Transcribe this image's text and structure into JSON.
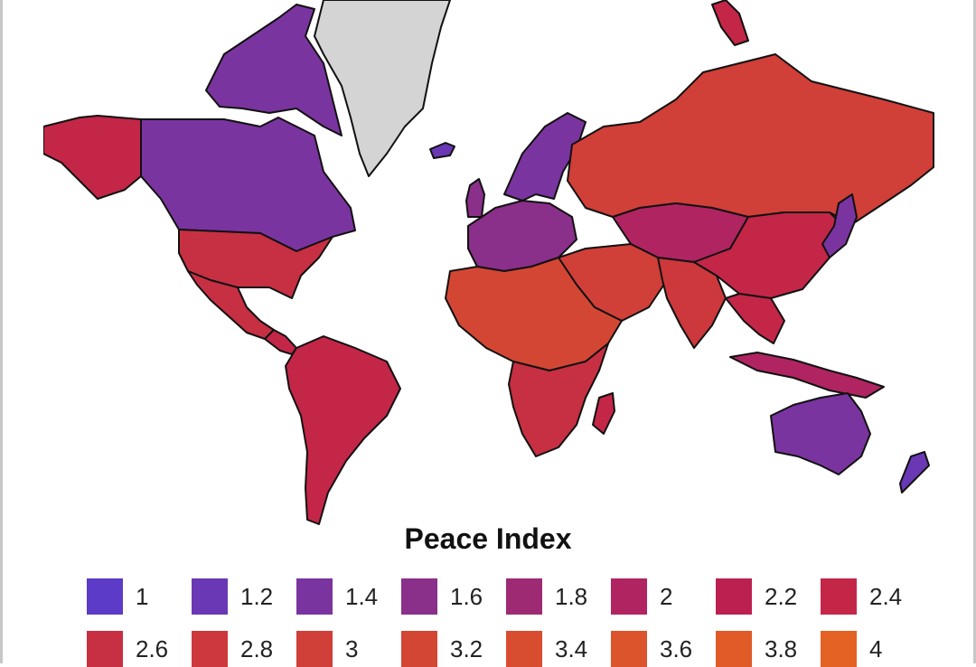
{
  "legend": {
    "title": "Peace Index",
    "items": [
      {
        "label": "1",
        "color": "#5c3bc8"
      },
      {
        "label": "1.2",
        "color": "#6a38b4"
      },
      {
        "label": "1.4",
        "color": "#7a349f"
      },
      {
        "label": "1.6",
        "color": "#8a2f8a"
      },
      {
        "label": "1.8",
        "color": "#9e2a74"
      },
      {
        "label": "2",
        "color": "#b02461"
      },
      {
        "label": "2.2",
        "color": "#bc2050"
      },
      {
        "label": "2.4",
        "color": "#c42648"
      },
      {
        "label": "2.6",
        "color": "#c72f42"
      },
      {
        "label": "2.8",
        "color": "#cc383c"
      },
      {
        "label": "3",
        "color": "#d03f38"
      },
      {
        "label": "3.2",
        "color": "#d44634"
      },
      {
        "label": "3.4",
        "color": "#d84d30"
      },
      {
        "label": "3.6",
        "color": "#dc542c"
      },
      {
        "label": "3.8",
        "color": "#e05b28"
      },
      {
        "label": "4",
        "color": "#e46224"
      }
    ]
  },
  "map": {
    "no_data_color": "#d4d4d4",
    "regions": [
      {
        "name": "alaska",
        "color": "#c42648"
      },
      {
        "name": "canada",
        "color": "#7a349f"
      },
      {
        "name": "canada-arctic",
        "color": "#7a349f"
      },
      {
        "name": "greenland",
        "color": "#d4d4d4"
      },
      {
        "name": "iceland",
        "color": "#6a38b4"
      },
      {
        "name": "usa",
        "color": "#c72f42"
      },
      {
        "name": "mexico",
        "color": "#c72f42"
      },
      {
        "name": "central-america",
        "color": "#c42648"
      },
      {
        "name": "south-america",
        "color": "#c42648"
      },
      {
        "name": "europe-west",
        "color": "#8a2f8a"
      },
      {
        "name": "scandinavia",
        "color": "#7a349f"
      },
      {
        "name": "russia",
        "color": "#d03f38"
      },
      {
        "name": "central-asia",
        "color": "#b02461"
      },
      {
        "name": "middle-east",
        "color": "#d03f38"
      },
      {
        "name": "india",
        "color": "#cc383c"
      },
      {
        "name": "china",
        "color": "#c42648"
      },
      {
        "name": "japan",
        "color": "#7a349f"
      },
      {
        "name": "se-asia",
        "color": "#c42648"
      },
      {
        "name": "africa-north",
        "color": "#d44634"
      },
      {
        "name": "africa-south",
        "color": "#c72f42"
      },
      {
        "name": "madagascar",
        "color": "#c42648"
      },
      {
        "name": "australia",
        "color": "#7a349f"
      },
      {
        "name": "new-zealand",
        "color": "#6a38b4"
      },
      {
        "name": "indonesia",
        "color": "#b02461"
      },
      {
        "name": "uk",
        "color": "#8a2f8a"
      },
      {
        "name": "svalbard",
        "color": "#c42648"
      }
    ]
  }
}
